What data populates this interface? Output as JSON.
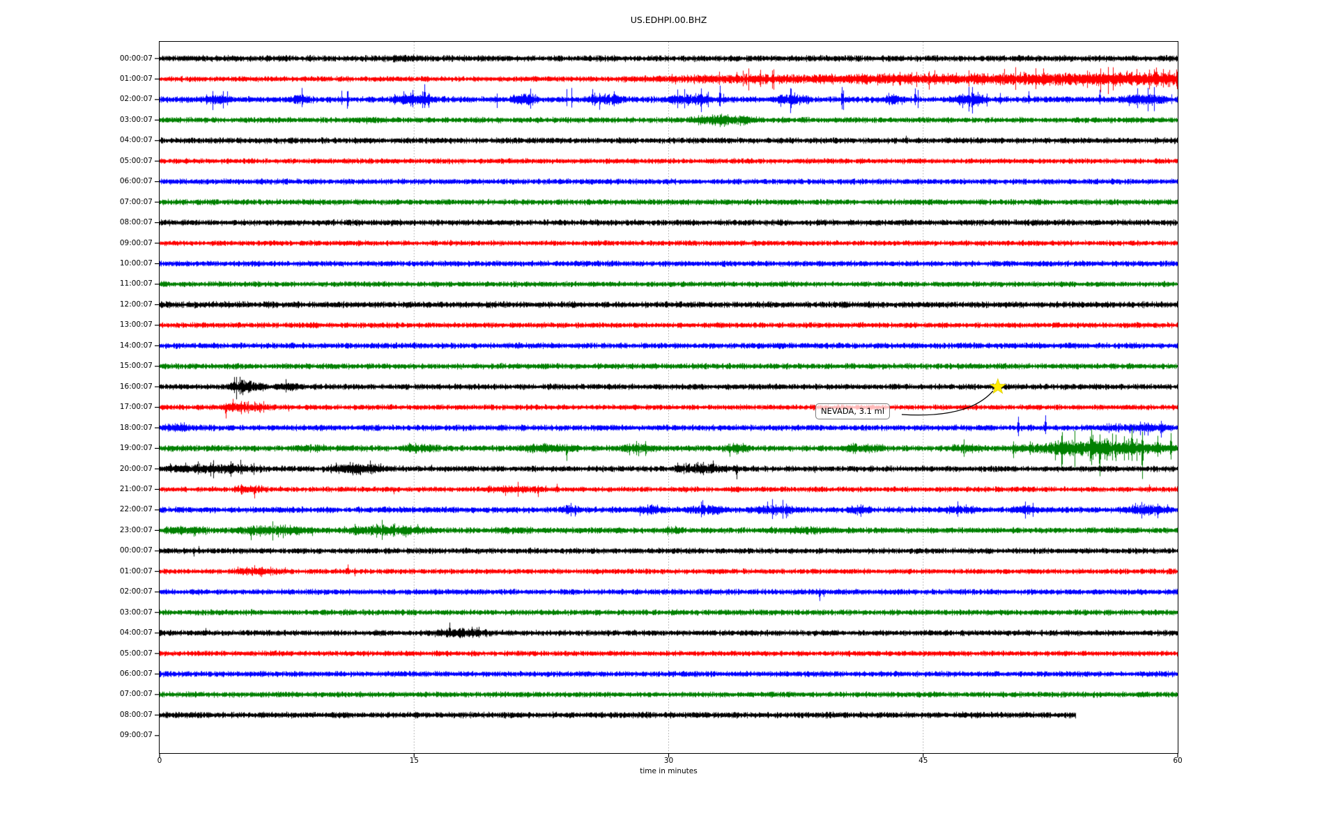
{
  "title": "US.EDHPI.00.BHZ",
  "xaxis": {
    "label": "time in minutes",
    "ticks": [
      "0",
      "15",
      "30",
      "45",
      "60"
    ],
    "tick_minutes": [
      0,
      15,
      30,
      45,
      60
    ],
    "gridline_minutes": [
      15,
      30,
      45
    ],
    "range_minutes": [
      0,
      60
    ]
  },
  "annotation": {
    "text": "NEVADA, 3.1 ml",
    "target_row_index": 16,
    "target_minute": 49.4,
    "star_color": "#ffeb00",
    "border_color": "#7a7a7a"
  },
  "colors": {
    "cycle": [
      "#000000",
      "#ff0000",
      "#0000ff",
      "#008000"
    ],
    "grid": "#aaaaaa",
    "axis": "#000000",
    "background": "#ffffff"
  },
  "chart_data": {
    "type": "line",
    "subtype": "helicorder-seismogram",
    "title": "US.EDHPI.00.BHZ",
    "xlabel": "time in minutes",
    "xlim": [
      0,
      60
    ],
    "grid": "vertical dotted gridlines at 15, 30, 45 minutes",
    "legend": "none",
    "row_spacing_hours": 1,
    "annotation_event": {
      "label": "NEVADA, 3.1 ml",
      "row": "16:00:07",
      "minute": 49.4
    },
    "rows": [
      {
        "label": "00:00:07",
        "color": "#000000",
        "base": 3.1,
        "end_min": 60,
        "bursts": [
          [
            13,
            15.5,
            1.2
          ]
        ],
        "spikes": []
      },
      {
        "label": "01:00:07",
        "color": "#ff0000",
        "base": 2.7,
        "end_min": 60,
        "bursts": [
          [
            26,
            47,
            3.2
          ],
          [
            38,
            82,
            6.0
          ]
        ],
        "spikes": [
          [
            34,
            10,
            4
          ],
          [
            43,
            8,
            3
          ],
          [
            48,
            9,
            4
          ],
          [
            53,
            8,
            8
          ],
          [
            57,
            12,
            5
          ],
          [
            58.6,
            14,
            6
          ],
          [
            59.5,
            13,
            5
          ]
        ]
      },
      {
        "label": "02:00:07",
        "color": "#0000ff",
        "base": 3.1,
        "end_min": 60,
        "spike_rate": 0.012,
        "spike_max": 13,
        "bursts": [
          [
            2.5,
            4.5,
            3.5
          ],
          [
            7.5,
            9,
            2.5
          ],
          [
            13.5,
            16.5,
            4.5
          ],
          [
            20.5,
            22.5,
            4.5
          ],
          [
            25,
            27.5,
            3.5
          ],
          [
            29.5,
            33,
            4.5
          ],
          [
            36,
            38.5,
            4.5
          ],
          [
            42.5,
            44,
            3.5
          ],
          [
            46.5,
            49,
            4.5
          ],
          [
            56.5,
            59.5,
            4.5
          ]
        ],
        "spikes": [
          [
            15.6,
            22,
            12
          ],
          [
            25.5,
            15,
            8
          ],
          [
            31.9,
            16,
            18
          ],
          [
            33,
            20,
            10
          ],
          [
            40.2,
            18,
            14
          ],
          [
            44.5,
            16,
            8
          ],
          [
            47.9,
            18,
            20
          ],
          [
            51.2,
            12,
            6
          ],
          [
            55.4,
            14,
            7
          ]
        ]
      },
      {
        "label": "03:00:07",
        "color": "#008000",
        "base": 2.9,
        "end_min": 60,
        "bursts": [
          [
            31,
            35.5,
            4.5
          ]
        ],
        "spikes": [
          [
            12.2,
            5,
            6
          ],
          [
            33,
            8,
            10
          ]
        ]
      },
      {
        "label": "04:00:07",
        "color": "#000000",
        "base": 3.0,
        "end_min": 60,
        "bursts": [],
        "spikes": [
          [
            44,
            7,
            3
          ]
        ]
      },
      {
        "label": "05:00:07",
        "color": "#ff0000",
        "base": 2.7,
        "end_min": 60,
        "bursts": [],
        "spikes": []
      },
      {
        "label": "06:00:07",
        "color": "#0000ff",
        "base": 2.9,
        "end_min": 60,
        "bursts": [],
        "spikes": []
      },
      {
        "label": "07:00:07",
        "color": "#008000",
        "base": 2.9,
        "end_min": 60,
        "bursts": [],
        "spikes": []
      },
      {
        "label": "08:00:07",
        "color": "#000000",
        "base": 3.1,
        "end_min": 60,
        "bursts": [],
        "spikes": []
      },
      {
        "label": "09:00:07",
        "color": "#ff0000",
        "base": 2.7,
        "end_min": 60,
        "bursts": [],
        "spikes": []
      },
      {
        "label": "10:00:07",
        "color": "#0000ff",
        "base": 2.9,
        "end_min": 60,
        "bursts": [],
        "spikes": []
      },
      {
        "label": "11:00:07",
        "color": "#008000",
        "base": 2.8,
        "end_min": 60,
        "bursts": [],
        "spikes": []
      },
      {
        "label": "12:00:07",
        "color": "#000000",
        "base": 3.2,
        "end_min": 60,
        "bursts": [],
        "spikes": []
      },
      {
        "label": "13:00:07",
        "color": "#ff0000",
        "base": 2.8,
        "end_min": 60,
        "bursts": [],
        "spikes": []
      },
      {
        "label": "14:00:07",
        "color": "#0000ff",
        "base": 3.0,
        "end_min": 60,
        "bursts": [],
        "spikes": []
      },
      {
        "label": "15:00:07",
        "color": "#008000",
        "base": 2.9,
        "end_min": 60,
        "bursts": [],
        "spikes": []
      },
      {
        "label": "16:00:07",
        "color": "#000000",
        "base": 2.9,
        "end_min": 60,
        "bursts": [
          [
            3.8,
            6.5,
            5.5
          ],
          [
            6.5,
            8.5,
            2.2
          ]
        ],
        "spikes": [
          [
            4.4,
            14,
            9
          ],
          [
            4.9,
            10,
            12
          ],
          [
            5.3,
            9,
            7
          ],
          [
            23,
            5,
            4
          ]
        ]
      },
      {
        "label": "17:00:07",
        "color": "#ff0000",
        "base": 2.7,
        "end_min": 60,
        "bursts": [
          [
            3.3,
            6.8,
            3.5
          ]
        ],
        "spikes": [
          [
            3.9,
            6,
            16
          ],
          [
            4.3,
            12,
            6
          ],
          [
            4.8,
            9,
            10
          ],
          [
            5.9,
            5,
            8
          ],
          [
            7.6,
            3,
            6
          ],
          [
            21,
            4,
            4
          ]
        ]
      },
      {
        "label": "18:00:07",
        "color": "#0000ff",
        "base": 3.0,
        "end_min": 60,
        "bursts": [
          [
            0,
            2,
            2.2
          ],
          [
            55,
            60,
            2.2
          ]
        ],
        "spikes": [
          [
            50.6,
            16,
            12
          ],
          [
            52.2,
            18,
            9
          ],
          [
            57.8,
            9,
            6
          ],
          [
            59,
            10,
            14
          ]
        ]
      },
      {
        "label": "19:00:07",
        "color": "#008000",
        "base": 3.1,
        "end_min": 60,
        "bursts": [
          [
            8,
            10,
            1.8
          ],
          [
            14,
            16.5,
            2.6
          ],
          [
            21,
            25,
            2.6
          ],
          [
            27,
            29.5,
            3.2
          ],
          [
            33,
            35,
            2.8
          ],
          [
            40,
            43,
            2.8
          ],
          [
            46.5,
            48.5,
            2.8
          ],
          [
            50,
            60,
            7.5
          ]
        ],
        "spikes": [
          [
            14.7,
            8,
            5
          ],
          [
            24,
            6,
            18
          ],
          [
            27.7,
            7,
            10
          ],
          [
            33.6,
            6,
            12
          ],
          [
            41,
            5,
            8
          ],
          [
            50.3,
            10,
            14
          ],
          [
            54.9,
            28,
            24
          ],
          [
            55.4,
            20,
            40
          ],
          [
            57.3,
            30,
            18
          ],
          [
            57.9,
            24,
            44
          ],
          [
            58.8,
            18,
            12
          ],
          [
            59.6,
            22,
            16
          ]
        ]
      },
      {
        "label": "20:00:07",
        "color": "#000000",
        "base": 3.0,
        "end_min": 60,
        "bursts": [
          [
            0,
            6.5,
            3.2
          ],
          [
            9.5,
            13.5,
            3.6
          ],
          [
            30,
            33.8,
            3.6
          ]
        ],
        "spikes": [
          [
            0.6,
            8,
            4
          ],
          [
            1.5,
            9,
            4
          ],
          [
            2.2,
            7,
            3
          ],
          [
            3.4,
            6,
            3
          ],
          [
            5,
            6,
            3
          ],
          [
            10.4,
            9,
            5
          ],
          [
            11.2,
            10,
            6
          ],
          [
            12.4,
            12,
            7
          ],
          [
            13,
            8,
            4
          ],
          [
            16,
            6,
            3
          ],
          [
            30.5,
            9,
            5
          ],
          [
            31.7,
            10,
            6
          ],
          [
            32.6,
            12,
            5
          ],
          [
            34,
            6,
            15
          ],
          [
            38.6,
            4,
            6
          ]
        ]
      },
      {
        "label": "21:00:07",
        "color": "#ff0000",
        "base": 2.7,
        "end_min": 60,
        "bursts": [
          [
            4.2,
            6.5,
            2.6
          ],
          [
            19,
            23,
            2.2
          ]
        ],
        "spikes": [
          [
            4.6,
            5,
            4
          ],
          [
            5.6,
            4,
            13
          ],
          [
            6,
            6,
            4
          ],
          [
            7.1,
            5,
            3
          ],
          [
            13.8,
            3,
            7
          ],
          [
            19.5,
            5,
            4
          ],
          [
            22.3,
            4,
            11
          ],
          [
            23.4,
            8,
            4
          ],
          [
            31,
            3,
            5
          ],
          [
            46.6,
            4,
            3
          ],
          [
            58.3,
            7,
            4
          ]
        ]
      },
      {
        "label": "22:00:07",
        "color": "#0000ff",
        "base": 3.1,
        "end_min": 60,
        "bursts": [
          [
            23.5,
            25,
            2.6
          ],
          [
            28,
            30,
            3.0
          ],
          [
            31,
            33.5,
            3.5
          ],
          [
            35,
            37.5,
            3.5
          ],
          [
            40.5,
            42,
            2.6
          ],
          [
            46,
            48.5,
            2.6
          ],
          [
            50,
            52,
            3.0
          ],
          [
            56.5,
            59.7,
            3.5
          ]
        ],
        "spikes": [
          [
            24,
            7,
            4
          ],
          [
            29,
            8,
            5
          ],
          [
            32,
            14,
            6
          ],
          [
            35.8,
            12,
            6
          ],
          [
            36.9,
            9,
            12
          ],
          [
            41.3,
            8,
            10
          ],
          [
            44.3,
            6,
            4
          ],
          [
            47.5,
            8,
            5
          ],
          [
            51,
            9,
            5
          ],
          [
            57.5,
            10,
            6
          ],
          [
            58.8,
            9,
            12
          ],
          [
            59.4,
            8,
            5
          ]
        ]
      },
      {
        "label": "23:00:07",
        "color": "#008000",
        "base": 3.0,
        "end_min": 60,
        "bursts": [
          [
            0,
            3,
            2.6
          ],
          [
            4,
            9.5,
            3.5
          ],
          [
            10.5,
            16.5,
            3.5
          ],
          [
            19.5,
            22,
            1.8
          ],
          [
            29.5,
            31,
            1.8
          ],
          [
            35.5,
            40,
            1.8
          ]
        ],
        "spikes": [
          [
            0.4,
            6,
            4
          ],
          [
            2.1,
            5,
            8
          ],
          [
            5.4,
            6,
            14
          ],
          [
            5.9,
            5,
            9
          ],
          [
            7,
            6,
            10
          ],
          [
            8.2,
            5,
            7
          ],
          [
            9,
            4,
            8
          ],
          [
            11.6,
            5,
            7
          ],
          [
            14.5,
            6,
            10
          ],
          [
            15.2,
            9,
            6
          ],
          [
            20.8,
            4,
            4
          ],
          [
            30,
            5,
            4
          ]
        ]
      },
      {
        "label": "00:00:07",
        "color": "#000000",
        "base": 2.9,
        "end_min": 60,
        "bursts": [],
        "spikes": [
          [
            2,
            5,
            8
          ],
          [
            2.3,
            7,
            4
          ],
          [
            16.5,
            4,
            3
          ]
        ]
      },
      {
        "label": "01:00:07",
        "color": "#ff0000",
        "base": 2.7,
        "end_min": 60,
        "bursts": [
          [
            4,
            7.8,
            2.2
          ]
        ],
        "spikes": [
          [
            4.6,
            7,
            3
          ],
          [
            5.6,
            9,
            4
          ],
          [
            6,
            6,
            8
          ],
          [
            7.4,
            6,
            3
          ],
          [
            11.1,
            10,
            4
          ],
          [
            11.5,
            5,
            7
          ],
          [
            19.6,
            4,
            3
          ],
          [
            23,
            3,
            3
          ]
        ]
      },
      {
        "label": "02:00:07",
        "color": "#0000ff",
        "base": 2.9,
        "end_min": 60,
        "bursts": [],
        "spikes": [
          [
            38.9,
            5,
            13
          ],
          [
            39.15,
            4,
            7
          ]
        ]
      },
      {
        "label": "03:00:07",
        "color": "#008000",
        "base": 2.9,
        "end_min": 60,
        "bursts": [],
        "spikes": []
      },
      {
        "label": "04:00:07",
        "color": "#000000",
        "base": 2.9,
        "end_min": 60,
        "bursts": [
          [
            16,
            19.8,
            3.2
          ]
        ],
        "spikes": [
          [
            2.7,
            7,
            4
          ],
          [
            16.6,
            6,
            5
          ],
          [
            17.1,
            15,
            6
          ],
          [
            17.9,
            7,
            5
          ],
          [
            18.4,
            9,
            4
          ],
          [
            18.7,
            8,
            5
          ]
        ]
      },
      {
        "label": "05:00:07",
        "color": "#ff0000",
        "base": 2.7,
        "end_min": 60,
        "bursts": [],
        "spikes": []
      },
      {
        "label": "06:00:07",
        "color": "#0000ff",
        "base": 2.9,
        "end_min": 60,
        "bursts": [],
        "spikes": []
      },
      {
        "label": "07:00:07",
        "color": "#008000",
        "base": 2.9,
        "end_min": 60,
        "bursts": [],
        "spikes": []
      },
      {
        "label": "08:00:07",
        "color": "#000000",
        "base": 3.1,
        "end_min": 54,
        "bursts": [],
        "spikes": []
      },
      {
        "label": "09:00:07",
        "color": "#ff0000",
        "base": 0,
        "end_min": 0,
        "bursts": [],
        "spikes": []
      }
    ]
  }
}
